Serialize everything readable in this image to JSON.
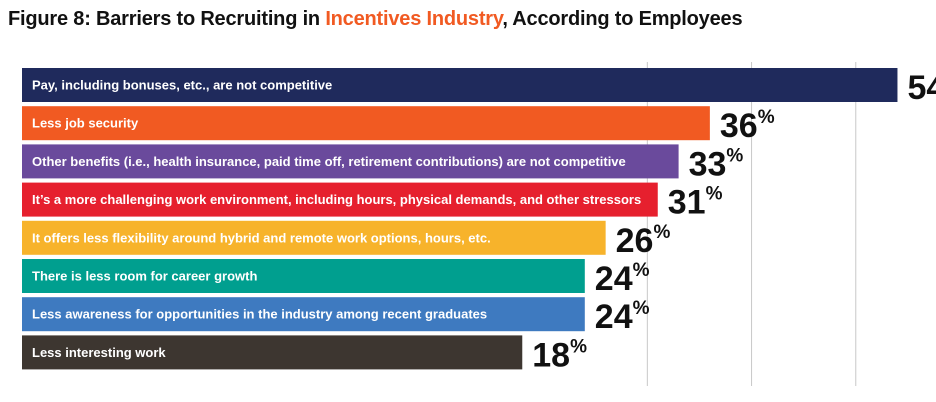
{
  "title": {
    "prefix": "Figure 8: Barriers to Recruiting in ",
    "highlight": "Incentives Industry",
    "suffix": ", According to Employees"
  },
  "colors": {
    "highlight": "#f15a22",
    "bars": [
      "#1f2a5c",
      "#f15a22",
      "#6a4a9c",
      "#e6202e",
      "#f7b32b",
      "#009f8f",
      "#3e7ac0",
      "#3d3630"
    ]
  },
  "chart_data": {
    "type": "bar",
    "orientation": "horizontal",
    "categories": [
      "Pay, including bonuses, etc., are not competitive",
      "Less job security",
      "Other benefits (i.e., health insurance, paid time off, retirement contributions) are not competitive",
      "It’s a more challenging work environment, including hours, physical demands, and other stressors",
      "It offers less flexibility around hybrid and remote work options, hours, etc.",
      "There is less room for career growth",
      "Less awareness for opportunities in the industry among recent graduates",
      "Less interesting work"
    ],
    "values": [
      54,
      36,
      33,
      31,
      26,
      24,
      24,
      18
    ],
    "value_suffix": "%",
    "xlim": [
      -30,
      60
    ],
    "gridlines": [
      30,
      40,
      50
    ],
    "grid": true
  }
}
